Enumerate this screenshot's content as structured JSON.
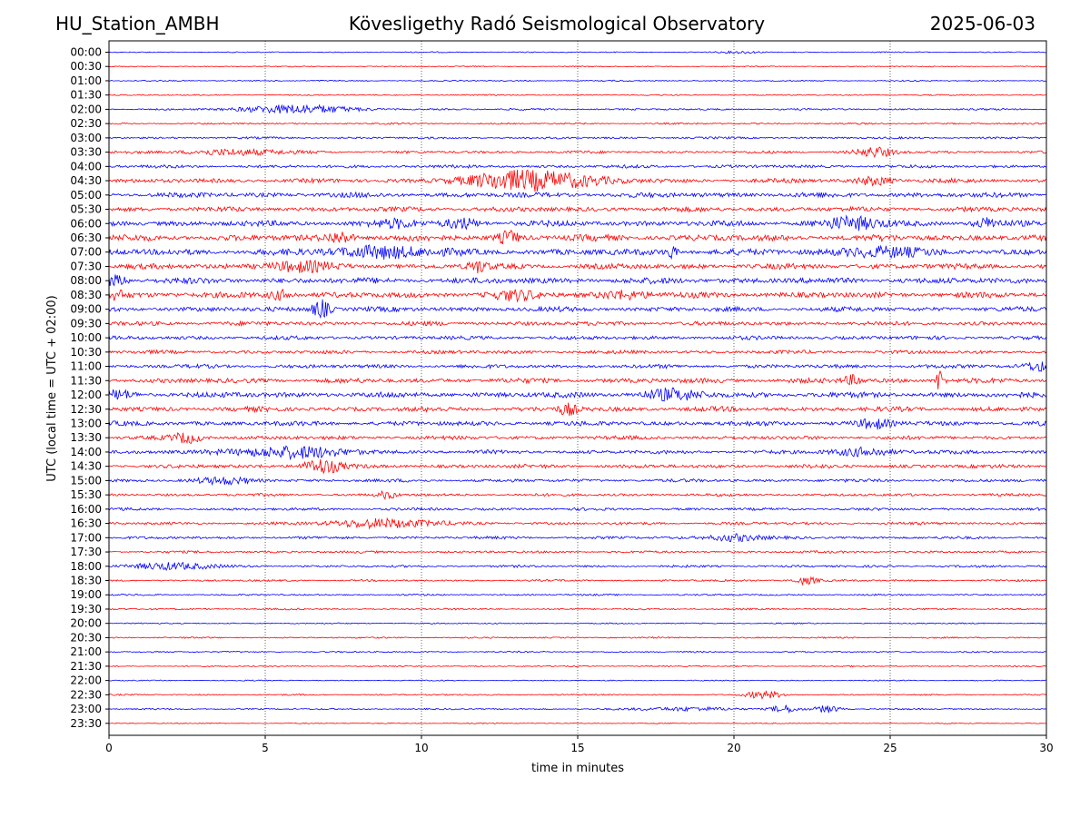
{
  "header": {
    "station": "HU_Station_AMBH",
    "title": "Kövesligethy Radó Seismological Observatory",
    "date": "2025-06-03"
  },
  "chart_data": {
    "type": "line",
    "title": "Kövesligethy Radó Seismological Observatory",
    "xlabel": "time in minutes",
    "ylabel": "UTC (local time = UTC + 02:00)",
    "xlim": [
      0,
      30
    ],
    "x_ticks": [
      0,
      5,
      10,
      15,
      20,
      25,
      30
    ],
    "grid": "vertical dotted at x ticks",
    "colors": {
      "even_row": "#0000ff",
      "odd_row": "#ff0000"
    },
    "rows": [
      "00:00",
      "00:30",
      "01:00",
      "01:30",
      "02:00",
      "02:30",
      "03:00",
      "03:30",
      "04:00",
      "04:30",
      "05:00",
      "05:30",
      "06:00",
      "06:30",
      "07:00",
      "07:30",
      "08:00",
      "08:30",
      "09:00",
      "09:30",
      "10:00",
      "10:30",
      "11:00",
      "11:30",
      "12:00",
      "12:30",
      "13:00",
      "13:30",
      "14:00",
      "14:30",
      "15:00",
      "15:30",
      "16:00",
      "16:30",
      "17:00",
      "17:30",
      "18:00",
      "18:30",
      "19:00",
      "19:30",
      "20:00",
      "20:30",
      "21:00",
      "21:30",
      "22:00",
      "22:30",
      "23:00",
      "23:30"
    ],
    "noise_level": [
      0.5,
      0.5,
      0.6,
      0.6,
      0.9,
      0.8,
      1.0,
      1.3,
      1.5,
      2.0,
      2.4,
      2.3,
      2.7,
      3.0,
      3.0,
      2.6,
      2.8,
      2.7,
      2.3,
      2.0,
      1.8,
      1.7,
      1.8,
      2.3,
      2.6,
      2.3,
      2.2,
      1.8,
      1.8,
      1.8,
      1.5,
      1.3,
      1.3,
      1.3,
      1.3,
      1.1,
      1.1,
      0.9,
      0.8,
      0.8,
      0.6,
      0.7,
      0.7,
      0.6,
      0.5,
      0.7,
      0.7,
      0.5
    ],
    "events": [
      {
        "row": "00:00",
        "t": 20.3,
        "amp": 1.2,
        "dur": 0.6
      },
      {
        "row": "02:00",
        "t": 6.0,
        "amp": 5,
        "dur": 1.6
      },
      {
        "row": "03:30",
        "t": 4.0,
        "amp": 3,
        "dur": 1.6
      },
      {
        "row": "03:30",
        "t": 24.5,
        "amp": 5,
        "dur": 0.6
      },
      {
        "row": "04:30",
        "t": 13.5,
        "amp": 11,
        "dur": 2.0
      },
      {
        "row": "04:30",
        "t": 24.5,
        "amp": 4,
        "dur": 0.6
      },
      {
        "row": "06:00",
        "t": 9.2,
        "amp": 4,
        "dur": 0.6
      },
      {
        "row": "06:00",
        "t": 11.3,
        "amp": 5,
        "dur": 0.5
      },
      {
        "row": "06:00",
        "t": 23.8,
        "amp": 6,
        "dur": 1.0
      },
      {
        "row": "06:00",
        "t": 28.1,
        "amp": 5,
        "dur": 0.4
      },
      {
        "row": "06:30",
        "t": 7.4,
        "amp": 6,
        "dur": 0.4
      },
      {
        "row": "06:30",
        "t": 12.8,
        "amp": 7,
        "dur": 0.3
      },
      {
        "row": "07:00",
        "t": 8.8,
        "amp": 6,
        "dur": 1.5
      },
      {
        "row": "07:00",
        "t": 18.0,
        "amp": 8,
        "dur": 0.15
      },
      {
        "row": "07:00",
        "t": 24.6,
        "amp": 5,
        "dur": 1.2
      },
      {
        "row": "07:30",
        "t": 6.0,
        "amp": 5,
        "dur": 1.0
      },
      {
        "row": "07:30",
        "t": 11.8,
        "amp": 6,
        "dur": 0.3
      },
      {
        "row": "08:00",
        "t": 0.2,
        "amp": 5,
        "dur": 0.4
      },
      {
        "row": "08:30",
        "t": 0.2,
        "amp": 5,
        "dur": 0.4
      },
      {
        "row": "08:30",
        "t": 5.5,
        "amp": 5,
        "dur": 0.4
      },
      {
        "row": "08:30",
        "t": 13.0,
        "amp": 4,
        "dur": 0.8
      },
      {
        "row": "08:30",
        "t": 16.5,
        "amp": 4,
        "dur": 0.8
      },
      {
        "row": "09:00",
        "t": 6.8,
        "amp": 10,
        "dur": 0.3
      },
      {
        "row": "11:00",
        "t": 29.8,
        "amp": 5,
        "dur": 0.5
      },
      {
        "row": "11:30",
        "t": 26.6,
        "amp": 14,
        "dur": 0.12
      },
      {
        "row": "11:30",
        "t": 23.8,
        "amp": 5,
        "dur": 0.3
      },
      {
        "row": "12:00",
        "t": 0.3,
        "amp": 4,
        "dur": 0.5
      },
      {
        "row": "12:00",
        "t": 18.0,
        "amp": 5,
        "dur": 1.0
      },
      {
        "row": "12:30",
        "t": 14.7,
        "amp": 6,
        "dur": 0.3
      },
      {
        "row": "13:00",
        "t": 24.5,
        "amp": 5,
        "dur": 0.5
      },
      {
        "row": "13:30",
        "t": 2.5,
        "amp": 5,
        "dur": 0.5
      },
      {
        "row": "14:00",
        "t": 5.8,
        "amp": 6,
        "dur": 1.8
      },
      {
        "row": "14:00",
        "t": 24.2,
        "amp": 4,
        "dur": 1.0
      },
      {
        "row": "14:30",
        "t": 6.8,
        "amp": 8,
        "dur": 0.6
      },
      {
        "row": "15:00",
        "t": 3.7,
        "amp": 3,
        "dur": 1.0
      },
      {
        "row": "15:30",
        "t": 8.9,
        "amp": 4,
        "dur": 0.3
      },
      {
        "row": "16:30",
        "t": 8.8,
        "amp": 5,
        "dur": 1.6
      },
      {
        "row": "17:00",
        "t": 20.0,
        "amp": 4,
        "dur": 0.8
      },
      {
        "row": "18:00",
        "t": 2.0,
        "amp": 4,
        "dur": 1.2
      },
      {
        "row": "18:30",
        "t": 22.3,
        "amp": 4,
        "dur": 0.4
      },
      {
        "row": "22:30",
        "t": 21.0,
        "amp": 4,
        "dur": 0.6
      },
      {
        "row": "23:00",
        "t": 21.6,
        "amp": 4,
        "dur": 0.4
      },
      {
        "row": "23:00",
        "t": 23.0,
        "amp": 4,
        "dur": 0.4
      },
      {
        "row": "23:00",
        "t": 18.5,
        "amp": 2,
        "dur": 1.5
      }
    ]
  }
}
